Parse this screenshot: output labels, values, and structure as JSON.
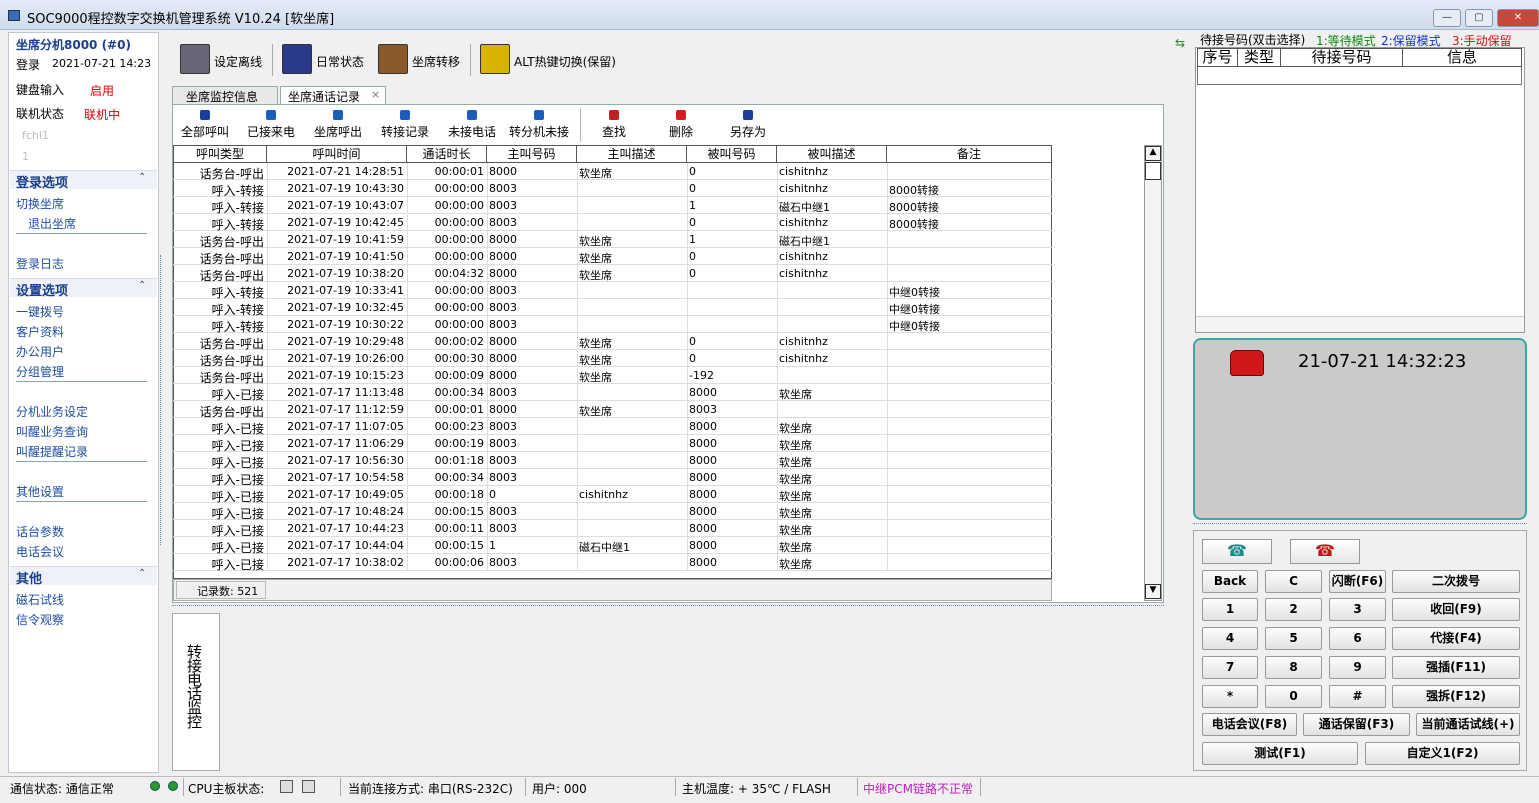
{
  "window": {
    "title": "SOC9000程控数字交换机管理系统 V10.24 [软坐席]"
  },
  "sidebar": {
    "agent": "坐席分机8000 (#0)",
    "login_label": "登录",
    "login_time": "2021-07-21 14:23",
    "keyboard_label": "键盘输入",
    "keyboard_state": "启用",
    "online_label": "联机状态",
    "online_state": "联机中",
    "channel": "fchl1",
    "channel_no": "1",
    "sections": [
      {
        "title": "登录选项",
        "groups": [
          [
            "切换坐席",
            "退出坐席"
          ],
          [
            "登录日志"
          ]
        ]
      },
      {
        "title": "设置选项",
        "groups": [
          [
            "一键拨号",
            "客户资料",
            "办公用户",
            "分组管理"
          ],
          [
            "分机业务设定",
            "叫醒业务查询",
            "叫醒提醒记录"
          ],
          [
            "其他设置"
          ],
          [
            "话台参数",
            "电话会议"
          ]
        ]
      },
      {
        "title": "其他",
        "groups": [
          [
            "磁石试线",
            "信令观察"
          ]
        ]
      }
    ]
  },
  "toolbar": [
    "设定离线",
    "日常状态",
    "坐席转移",
    "ALT热键切换(保留)"
  ],
  "tabs": [
    "坐席监控信息",
    "坐席通话记录"
  ],
  "subtoolbar": [
    "全部呼叫",
    "已接来电",
    "坐席呼出",
    "转接记录",
    "未接电话",
    "转分机未接",
    "查找",
    "删除",
    "另存为"
  ],
  "table": {
    "columns": [
      "呼叫类型",
      "呼叫时间",
      "通话时长",
      "主叫号码",
      "主叫描述",
      "被叫号码",
      "被叫描述",
      "备注"
    ],
    "rows": [
      [
        "话务台-呼出",
        "2021-07-21 14:28:51",
        "00:00:01",
        "8000",
        "软坐席",
        "0",
        "cishitnhz",
        null
      ],
      [
        "呼入-转接",
        "2021-07-19 10:43:30",
        "00:00:00",
        "8003",
        null,
        "0",
        "cishitnhz",
        "8000转接"
      ],
      [
        "呼入-转接",
        "2021-07-19 10:43:07",
        "00:00:00",
        "8003",
        null,
        "1",
        "磁石中继1",
        "8000转接"
      ],
      [
        "呼入-转接",
        "2021-07-19 10:42:45",
        "00:00:00",
        "8003",
        null,
        "0",
        "cishitnhz",
        "8000转接"
      ],
      [
        "话务台-呼出",
        "2021-07-19 10:41:59",
        "00:00:00",
        "8000",
        "软坐席",
        "1",
        "磁石中继1",
        null
      ],
      [
        "话务台-呼出",
        "2021-07-19 10:41:50",
        "00:00:00",
        "8000",
        "软坐席",
        "0",
        "cishitnhz",
        null
      ],
      [
        "话务台-呼出",
        "2021-07-19 10:38:20",
        "00:04:32",
        "8000",
        "软坐席",
        "0",
        "cishitnhz",
        null
      ],
      [
        "呼入-转接",
        "2021-07-19 10:33:41",
        "00:00:00",
        "8003",
        null,
        null,
        null,
        "中继0转接"
      ],
      [
        "呼入-转接",
        "2021-07-19 10:32:45",
        "00:00:00",
        "8003",
        null,
        null,
        null,
        "中继0转接"
      ],
      [
        "呼入-转接",
        "2021-07-19 10:30:22",
        "00:00:00",
        "8003",
        null,
        null,
        null,
        "中继0转接"
      ],
      [
        "话务台-呼出",
        "2021-07-19 10:29:48",
        "00:00:02",
        "8000",
        "软坐席",
        "0",
        "cishitnhz",
        null
      ],
      [
        "话务台-呼出",
        "2021-07-19 10:26:00",
        "00:00:30",
        "8000",
        "软坐席",
        "0",
        "cishitnhz",
        null
      ],
      [
        "话务台-呼出",
        "2021-07-19 10:15:23",
        "00:00:09",
        "8000",
        "软坐席",
        "-192",
        null,
        null
      ],
      [
        "呼入-已接",
        "2021-07-17 11:13:48",
        "00:00:34",
        "8003",
        null,
        "8000",
        "软坐席",
        null
      ],
      [
        "话务台-呼出",
        "2021-07-17 11:12:59",
        "00:00:01",
        "8000",
        "软坐席",
        "8003",
        null,
        null
      ],
      [
        "呼入-已接",
        "2021-07-17 11:07:05",
        "00:00:23",
        "8003",
        null,
        "8000",
        "软坐席",
        null
      ],
      [
        "呼入-已接",
        "2021-07-17 11:06:29",
        "00:00:19",
        "8003",
        null,
        "8000",
        "软坐席",
        null
      ],
      [
        "呼入-已接",
        "2021-07-17 10:56:30",
        "00:01:18",
        "8003",
        null,
        "8000",
        "软坐席",
        null
      ],
      [
        "呼入-已接",
        "2021-07-17 10:54:58",
        "00:00:34",
        "8003",
        null,
        "8000",
        "软坐席",
        null
      ],
      [
        "呼入-已接",
        "2021-07-17 10:49:05",
        "00:00:18",
        "0",
        "cishitnhz",
        "8000",
        "软坐席",
        null
      ],
      [
        "呼入-已接",
        "2021-07-17 10:48:24",
        "00:00:15",
        "8003",
        null,
        "8000",
        "软坐席",
        null
      ],
      [
        "呼入-已接",
        "2021-07-17 10:44:23",
        "00:00:11",
        "8003",
        null,
        "8000",
        "软坐席",
        null
      ],
      [
        "呼入-已接",
        "2021-07-17 10:44:04",
        "00:00:15",
        "1",
        "磁石中继1",
        "8000",
        "软坐席",
        null
      ],
      [
        "呼入-已接",
        "2021-07-17 10:38:02",
        "00:00:06",
        "8003",
        null,
        "8000",
        "软坐席",
        null
      ]
    ],
    "record_count": "记录数: 521"
  },
  "monitor_tab": "转接电话监控",
  "queue": {
    "title": "待接号码(双击选择)",
    "modes": [
      "1:等待模式",
      "2:保留模式",
      "3:手动保留"
    ],
    "columns": [
      "序号",
      "类型",
      "待接号码",
      "信息"
    ]
  },
  "clock": "21-07-21 14:32:23",
  "keypad": [
    [
      "Back",
      "C",
      "闪断(F6)",
      "二次拨号"
    ],
    [
      "1",
      "2",
      "3",
      "收回(F9)"
    ],
    [
      "4",
      "5",
      "6",
      "代接(F4)"
    ],
    [
      "7",
      "8",
      "9",
      "强插(F11)"
    ],
    [
      "*",
      "0",
      "#",
      "强拆(F12)"
    ],
    [
      "电话会议(F8)",
      "通话保留(F3)",
      "当前通话试线(+)"
    ],
    [
      "测试(F1)",
      "自定义1(F2)"
    ]
  ],
  "status": [
    "通信状态: 通信正常",
    "CPU主板状态:",
    "当前连接方式: 串口(RS-232C)",
    "用户: 000",
    "主机温度: + 35℃ / FLASH",
    "中继PCM链路不正常"
  ]
}
